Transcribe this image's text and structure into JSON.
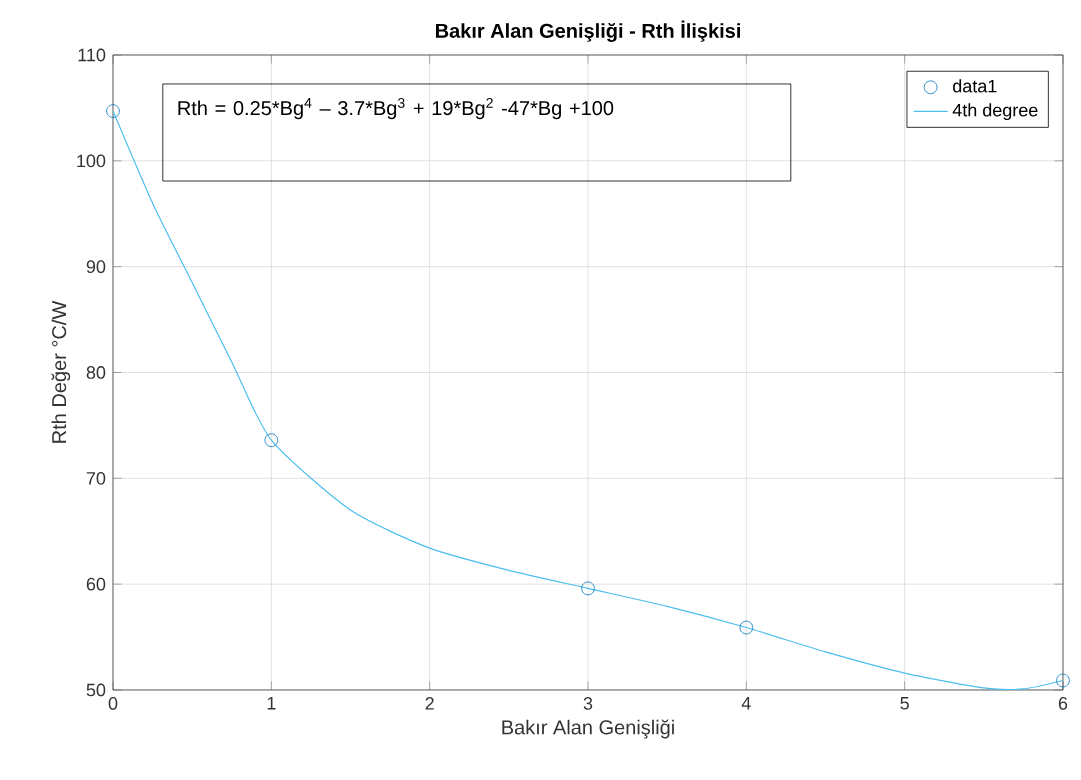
{
  "chart_data": {
    "type": "scatter",
    "title": "Bakır Alan Genişliği - Rth İlişkisi",
    "xlabel": "Bakır Alan Genişliği",
    "ylabel": "Rth Değer °C/W",
    "annotations": [
      "Rth = 0.25*Bg$^{4}$ – 3.7*Bg$^{3}$ + 19*Bg$^{2}$ -47*Bg +100"
    ],
    "x": [
      0,
      1,
      3,
      4,
      6
    ],
    "series": [
      {
        "name": "data1",
        "marker": "circle",
        "color": "#0072bd",
        "values": [
          104.7,
          73.6,
          59.6,
          55.9,
          50.9
        ]
      },
      {
        "name": "4th degree",
        "type": "line",
        "marker": "none",
        "color": "#4dbeee",
        "x": [
          0,
          0.25,
          0.5,
          0.75,
          1,
          1.5,
          2,
          2.5,
          3,
          3.5,
          4,
          4.5,
          5,
          5.5,
          5.75,
          6
        ],
        "values": [
          104.7,
          96,
          88.5,
          81,
          73.6,
          67,
          63.4,
          61.3,
          59.6,
          57.9,
          55.9,
          53.6,
          51.6,
          50.2,
          50.1,
          50.9
        ]
      }
    ],
    "xlim": [
      0,
      6
    ],
    "ylim": [
      50,
      110
    ],
    "xticks": [
      0,
      1,
      2,
      3,
      4,
      5,
      6
    ],
    "yticks": [
      50,
      60,
      70,
      80,
      90,
      100,
      110
    ],
    "grid": true,
    "legend": "top right"
  }
}
